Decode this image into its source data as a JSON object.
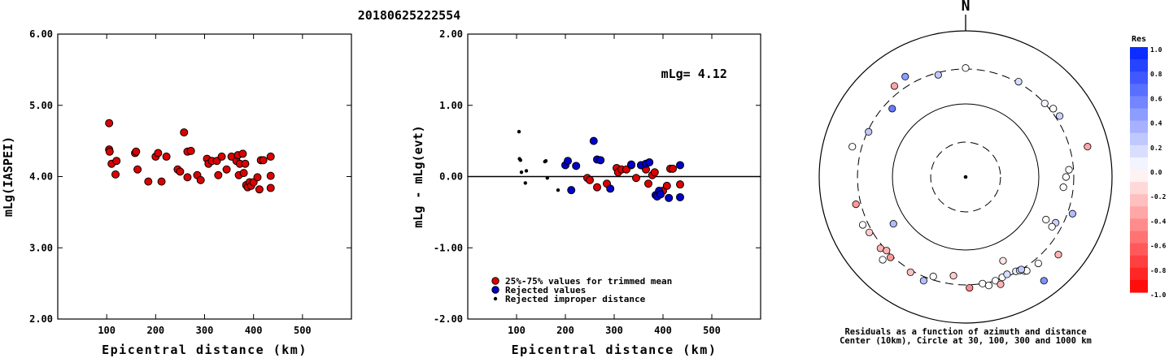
{
  "event_id": "20180625222554",
  "chart_data": [
    {
      "type": "scatter",
      "panel": "left",
      "xlabel": "Epicentral distance (km)",
      "ylabel": "mLg(IASPEI)",
      "xlim": [
        0,
        600
      ],
      "ylim": [
        2.0,
        6.0
      ],
      "xticks": [
        100,
        200,
        300,
        400,
        500
      ],
      "yticks": [
        2.0,
        3.0,
        4.0,
        5.0,
        6.0
      ],
      "ytick_labels": [
        "2.00",
        "3.00",
        "4.00",
        "5.00",
        "6.00"
      ],
      "grid": false,
      "series": [
        {
          "color": "#dd0000",
          "points": [
            [
              105,
              4.75
            ],
            [
              105,
              4.38
            ],
            [
              106,
              4.35
            ],
            [
              110,
              4.18
            ],
            [
              118,
              4.03
            ],
            [
              120,
              4.22
            ],
            [
              158,
              4.33
            ],
            [
              160,
              4.35
            ],
            [
              163,
              4.1
            ],
            [
              185,
              3.93
            ],
            [
              200,
              4.28
            ],
            [
              205,
              4.33
            ],
            [
              212,
              3.93
            ],
            [
              222,
              4.28
            ],
            [
              245,
              4.1
            ],
            [
              250,
              4.07
            ],
            [
              258,
              4.62
            ],
            [
              265,
              3.99
            ],
            [
              265,
              4.35
            ],
            [
              272,
              4.36
            ],
            [
              285,
              4.02
            ],
            [
              292,
              3.95
            ],
            [
              305,
              4.25
            ],
            [
              308,
              4.18
            ],
            [
              315,
              4.22
            ],
            [
              325,
              4.22
            ],
            [
              328,
              4.02
            ],
            [
              335,
              4.28
            ],
            [
              345,
              4.1
            ],
            [
              355,
              4.28
            ],
            [
              365,
              4.22
            ],
            [
              368,
              4.3
            ],
            [
              370,
              4.02
            ],
            [
              372,
              4.18
            ],
            [
              378,
              4.32
            ],
            [
              380,
              4.05
            ],
            [
              383,
              4.18
            ],
            [
              385,
              3.88
            ],
            [
              388,
              3.85
            ],
            [
              392,
              3.92
            ],
            [
              395,
              3.87
            ],
            [
              400,
              3.92
            ],
            [
              408,
              3.99
            ],
            [
              412,
              3.82
            ],
            [
              415,
              4.23
            ],
            [
              420,
              4.23
            ],
            [
              435,
              4.28
            ],
            [
              435,
              4.01
            ],
            [
              435,
              3.84
            ]
          ]
        }
      ]
    },
    {
      "type": "scatter",
      "panel": "middle",
      "xlabel": "Epicentral distance (km)",
      "ylabel": "mLg - mLg(evt)",
      "annotation": "mLg= 4.12",
      "xlim": [
        0,
        600
      ],
      "ylim": [
        -2.0,
        2.0
      ],
      "xticks": [
        100,
        200,
        300,
        400,
        500
      ],
      "yticks": [
        -2.0,
        -1.0,
        0.0,
        1.0,
        2.0
      ],
      "ytick_labels": [
        "-2.00",
        "-1.00",
        "0.00",
        "1.00",
        "2.00"
      ],
      "grid": false,
      "reference_line_y": 0.0,
      "legend_position": "bottom-left",
      "series": [
        {
          "name": "25%-75% values for trimmed mean",
          "color": "#dd0000",
          "marker": "circle",
          "points": [
            [
              245,
              -0.02
            ],
            [
              250,
              -0.05
            ],
            [
              265,
              -0.15
            ],
            [
              285,
              -0.1
            ],
            [
              305,
              0.12
            ],
            [
              308,
              0.06
            ],
            [
              315,
              0.1
            ],
            [
              325,
              0.1
            ],
            [
              335,
              0.16
            ],
            [
              345,
              -0.02
            ],
            [
              355,
              0.16
            ],
            [
              365,
              0.1
            ],
            [
              370,
              -0.1
            ],
            [
              378,
              0.02
            ],
            [
              383,
              0.06
            ],
            [
              400,
              -0.2
            ],
            [
              408,
              -0.13
            ],
            [
              415,
              0.11
            ],
            [
              420,
              0.11
            ],
            [
              435,
              -0.11
            ]
          ]
        },
        {
          "name": "Rejected values",
          "color": "#0000cc",
          "marker": "circle",
          "points": [
            [
              200,
              0.16
            ],
            [
              205,
              0.22
            ],
            [
              212,
              -0.19
            ],
            [
              222,
              0.15
            ],
            [
              258,
              0.5
            ],
            [
              265,
              0.24
            ],
            [
              272,
              0.23
            ],
            [
              292,
              -0.17
            ],
            [
              335,
              0.17
            ],
            [
              355,
              0.16
            ],
            [
              365,
              0.18
            ],
            [
              372,
              0.2
            ],
            [
              385,
              -0.26
            ],
            [
              388,
              -0.28
            ],
            [
              392,
              -0.2
            ],
            [
              395,
              -0.25
            ],
            [
              412,
              -0.3
            ],
            [
              435,
              0.16
            ],
            [
              435,
              -0.29
            ]
          ]
        },
        {
          "name": "Rejected improper distance",
          "color": "#000000",
          "marker": "dot",
          "points": [
            [
              105,
              0.63
            ],
            [
              106,
              0.25
            ],
            [
              108,
              0.23
            ],
            [
              110,
              0.06
            ],
            [
              118,
              -0.09
            ],
            [
              120,
              0.08
            ],
            [
              158,
              0.21
            ],
            [
              160,
              0.22
            ],
            [
              163,
              -0.02
            ],
            [
              185,
              -0.19
            ]
          ]
        }
      ]
    },
    {
      "type": "polar-scatter",
      "panel": "right",
      "north_label": "N",
      "caption_line1": "Residuals as a function of azimuth and distance",
      "caption_line2": "Center (10km), Circle at 30, 100, 300 and 1000 km",
      "colorbar_title": "Res",
      "colorbar_ticks": [
        "1.0",
        "0.8",
        "0.6",
        "0.4",
        "0.2",
        "0.0",
        "-0.2",
        "-0.4",
        "-0.6",
        "-0.8",
        "-1.0"
      ],
      "colorbar_range": [
        -1.0,
        1.0
      ],
      "colorbar_pos_color": "#0022ff",
      "colorbar_neg_color": "#ff0000",
      "rings_km": [
        30,
        100,
        300,
        1000
      ],
      "points": [
        {
          "az": 0,
          "res": 0.0
        },
        {
          "az": 29,
          "res": 0.15
        },
        {
          "az": 345,
          "res": 0.25
        },
        {
          "az": 329,
          "res": 0.45
        },
        {
          "az": 322,
          "res": -0.35
        },
        {
          "az": 313,
          "res": 0.6
        },
        {
          "az": 47,
          "res": 0.05
        },
        {
          "az": 52,
          "res": 0.3
        },
        {
          "az": 52,
          "res": 0.0
        },
        {
          "az": 57,
          "res": 0.2
        },
        {
          "az": 295,
          "res": 0.25
        },
        {
          "az": 285,
          "res": 0.0
        },
        {
          "az": 76,
          "res": -0.35
        },
        {
          "az": 86,
          "res": 0.0
        },
        {
          "az": 90,
          "res": 0.0
        },
        {
          "az": 96,
          "res": 0.0
        },
        {
          "az": 256,
          "res": -0.4
        },
        {
          "az": 109,
          "res": 0.3
        },
        {
          "az": 245,
          "res": 0.0
        },
        {
          "az": 117,
          "res": 0.2
        },
        {
          "az": 240,
          "res": -0.2
        },
        {
          "az": 118,
          "res": 0.0
        },
        {
          "az": 237,
          "res": 0.3
        },
        {
          "az": 230,
          "res": -0.3
        },
        {
          "az": 227,
          "res": -0.3
        },
        {
          "az": 223,
          "res": -0.4
        },
        {
          "az": 120,
          "res": 0.0
        },
        {
          "az": 130,
          "res": -0.3
        },
        {
          "az": 225,
          "res": 0.0
        },
        {
          "az": 210,
          "res": -0.25
        },
        {
          "az": 202,
          "res": 0.3
        },
        {
          "az": 178,
          "res": -0.45
        },
        {
          "az": 171,
          "res": 0.0
        },
        {
          "az": 168,
          "res": 0.0
        },
        {
          "az": 164,
          "res": 0.0
        },
        {
          "az": 160,
          "res": 0.0
        },
        {
          "az": 157,
          "res": 0.15
        },
        {
          "az": 152,
          "res": 0.1
        },
        {
          "az": 150,
          "res": 0.05
        },
        {
          "az": 148,
          "res": 0.0
        },
        {
          "az": 147,
          "res": 0.0
        },
        {
          "az": 156,
          "res": -0.1
        },
        {
          "az": 149,
          "res": 0.25
        },
        {
          "az": 143,
          "res": 0.5
        },
        {
          "az": 187,
          "res": -0.2
        },
        {
          "az": 198,
          "res": 0.0
        },
        {
          "az": 140,
          "res": 0.0
        },
        {
          "az": 162,
          "res": -0.3
        }
      ]
    }
  ]
}
